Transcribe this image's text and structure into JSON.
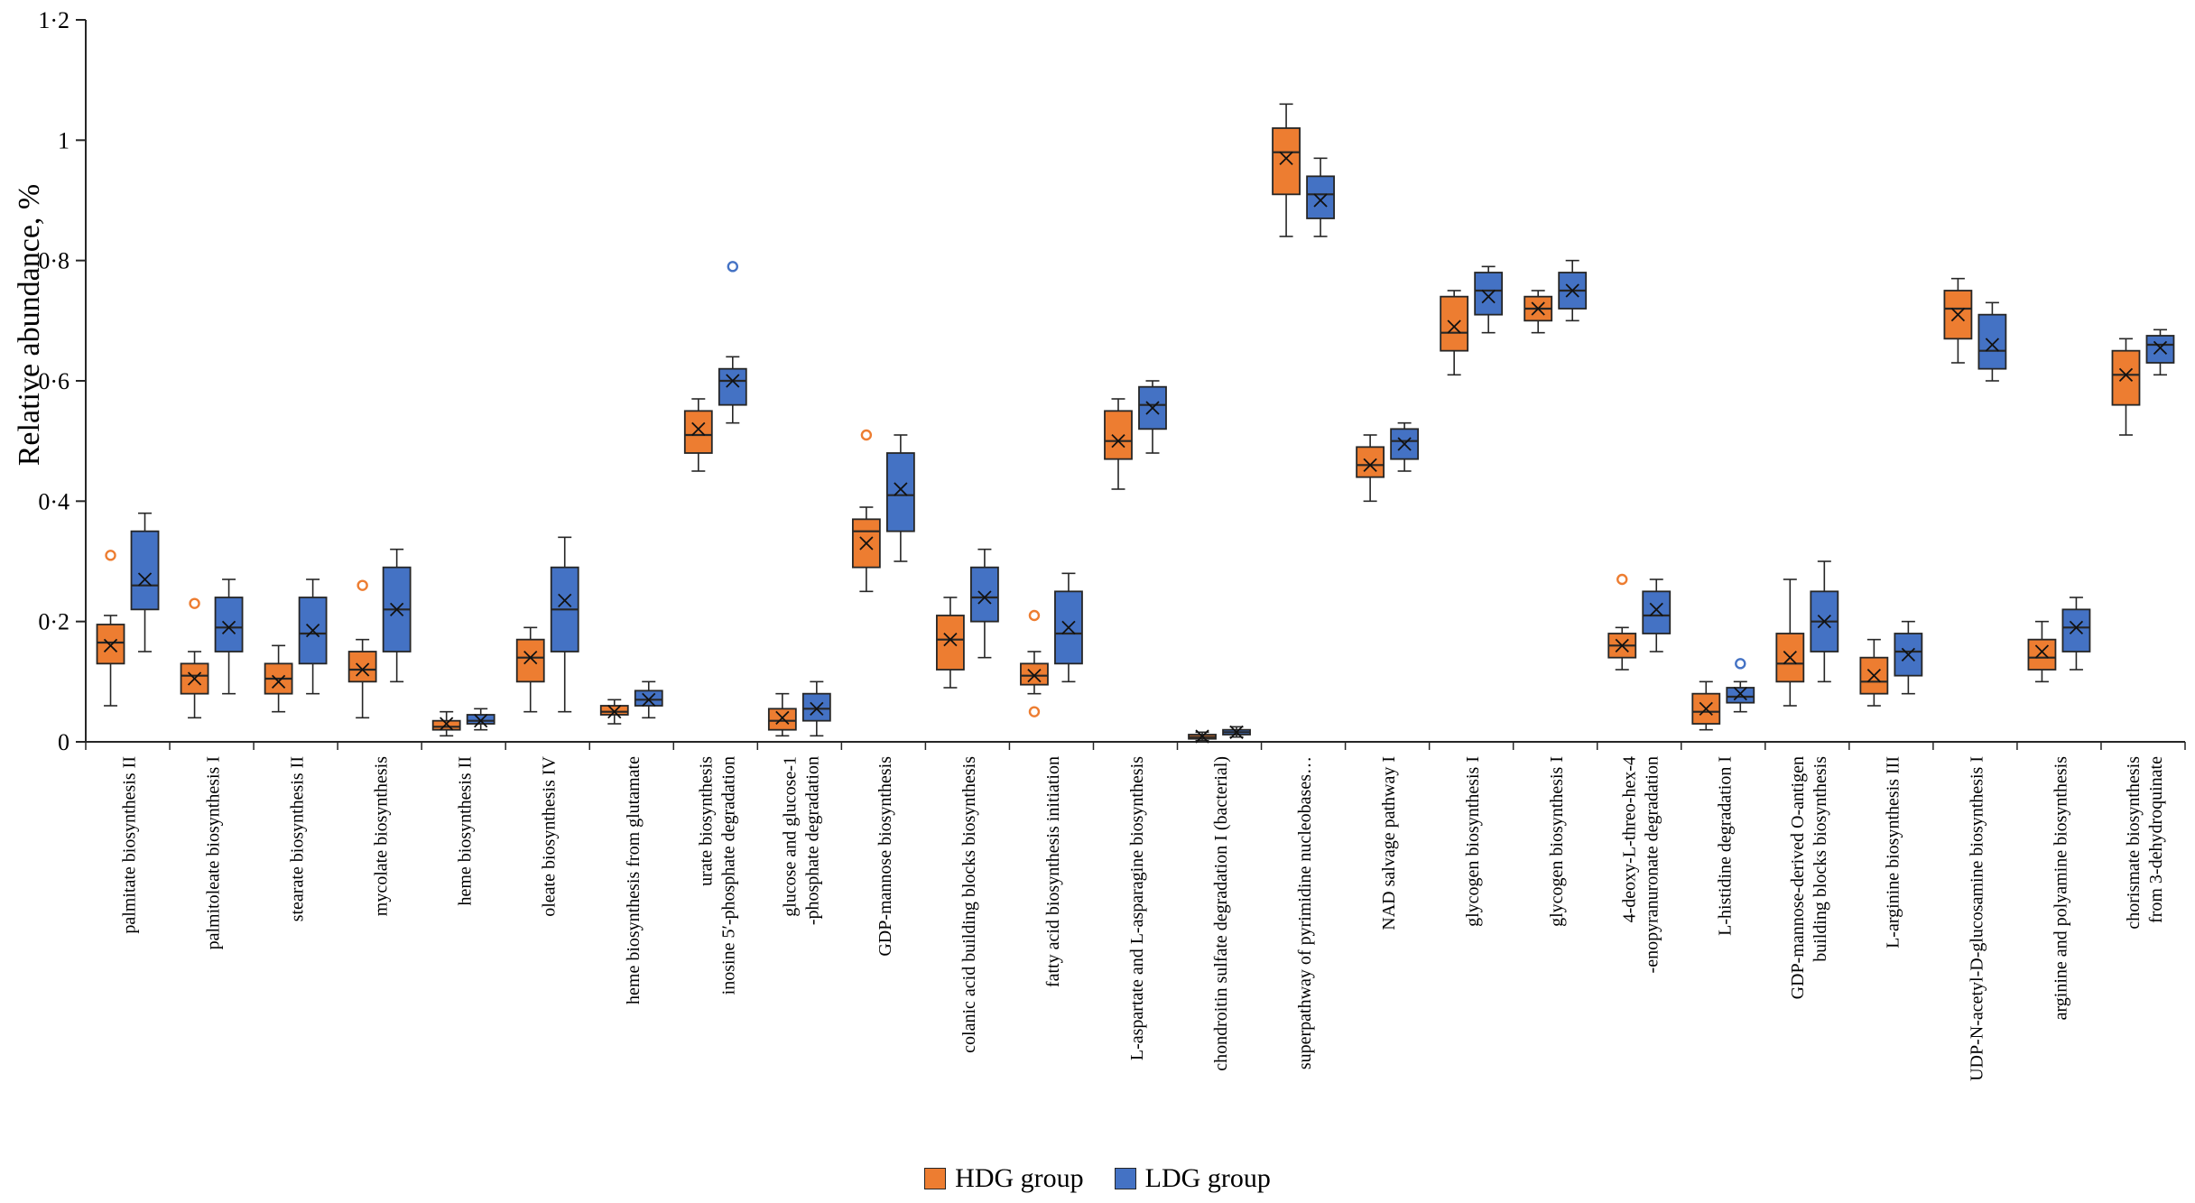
{
  "figure": {
    "background": "#ffffff"
  },
  "chart_data": {
    "type": "boxplot",
    "title": "",
    "ylabel": "Relative abundance, %",
    "xlabel": "",
    "ylim": [
      0,
      1.2
    ],
    "yticks": [
      0,
      0.2,
      0.4,
      0.6,
      0.8,
      1,
      1.2
    ],
    "ytick_labels": [
      "0",
      "0·2",
      "0·4",
      "0·6",
      "0·8",
      "1",
      "1·2"
    ],
    "grid": false,
    "legend_position": "bottom-center",
    "categories": [
      [
        "palmitate biosynthesis II"
      ],
      [
        "palmitoleate biosynthesis I"
      ],
      [
        "stearate biosynthesis II"
      ],
      [
        "mycolate biosynthesis"
      ],
      [
        "heme biosynthesis II"
      ],
      [
        "oleate biosynthesis IV"
      ],
      [
        "heme biosynthesis from glutamate"
      ],
      [
        "urate biosynthesis",
        "inosine 5′-phosphate degradation"
      ],
      [
        "glucose and glucose-1",
        "-phosphate degradation"
      ],
      [
        "GDP-mannose biosynthesis"
      ],
      [
        "colanic acid building blocks biosynthesis"
      ],
      [
        "fatty acid biosynthesis initiation"
      ],
      [
        "L-aspartate and L-asparagine biosynthesis"
      ],
      [
        "chondroitin sulfate degradation I (bacterial)"
      ],
      [
        "superpathway of pyrimidine nucleobases…"
      ],
      [
        "NAD salvage pathway I"
      ],
      [
        "glycogen biosynthesis I"
      ],
      [
        "glycogen biosynthesis I"
      ],
      [
        "4-deoxy-L-threo-hex-4",
        "-enopyranuronate degradation"
      ],
      [
        "L-histidine degradation I"
      ],
      [
        "GDP-mannose-derived O-antigen",
        "building blocks biosynthesis"
      ],
      [
        "L-arginine biosynthesis III"
      ],
      [
        "UDP-N-acetyl-D-glucosamine biosynthesis I"
      ],
      [
        "arginine and polyamine biosynthesis"
      ],
      [
        "chorismate biosynthesis",
        "from 3-dehydroquinate"
      ]
    ],
    "series": [
      {
        "name": "HDG group",
        "color": "#ED7D31",
        "edge": "#262626",
        "boxes": [
          {
            "low": 0.06,
            "q1": 0.13,
            "med": 0.165,
            "q3": 0.195,
            "high": 0.21,
            "mean": 0.16,
            "out": [
              0.31
            ]
          },
          {
            "low": 0.04,
            "q1": 0.08,
            "med": 0.11,
            "q3": 0.13,
            "high": 0.15,
            "mean": 0.105,
            "out": [
              0.23
            ]
          },
          {
            "low": 0.05,
            "q1": 0.08,
            "med": 0.105,
            "q3": 0.13,
            "high": 0.16,
            "mean": 0.1,
            "out": []
          },
          {
            "low": 0.04,
            "q1": 0.1,
            "med": 0.12,
            "q3": 0.15,
            "high": 0.17,
            "mean": 0.12,
            "out": [
              0.26
            ]
          },
          {
            "low": 0.01,
            "q1": 0.02,
            "med": 0.025,
            "q3": 0.035,
            "high": 0.05,
            "mean": 0.03,
            "out": []
          },
          {
            "low": 0.05,
            "q1": 0.1,
            "med": 0.14,
            "q3": 0.17,
            "high": 0.19,
            "mean": 0.14,
            "out": []
          },
          {
            "low": 0.03,
            "q1": 0.045,
            "med": 0.05,
            "q3": 0.06,
            "high": 0.07,
            "mean": 0.05,
            "out": []
          },
          {
            "low": 0.45,
            "q1": 0.48,
            "med": 0.51,
            "q3": 0.55,
            "high": 0.57,
            "mean": 0.52,
            "out": []
          },
          {
            "low": 0.01,
            "q1": 0.02,
            "med": 0.035,
            "q3": 0.055,
            "high": 0.08,
            "mean": 0.04,
            "out": []
          },
          {
            "low": 0.25,
            "q1": 0.29,
            "med": 0.35,
            "q3": 0.37,
            "high": 0.39,
            "mean": 0.33,
            "out": [
              0.51
            ]
          },
          {
            "low": 0.09,
            "q1": 0.12,
            "med": 0.17,
            "q3": 0.21,
            "high": 0.24,
            "mean": 0.17,
            "out": []
          },
          {
            "low": 0.08,
            "q1": 0.095,
            "med": 0.11,
            "q3": 0.13,
            "high": 0.15,
            "mean": 0.11,
            "out": [
              0.21,
              0.05
            ]
          },
          {
            "low": 0.42,
            "q1": 0.47,
            "med": 0.5,
            "q3": 0.55,
            "high": 0.57,
            "mean": 0.5,
            "out": []
          },
          {
            "low": 0.002,
            "q1": 0.005,
            "med": 0.008,
            "q3": 0.012,
            "high": 0.016,
            "mean": 0.009,
            "out": []
          },
          {
            "low": 0.84,
            "q1": 0.91,
            "med": 0.98,
            "q3": 1.02,
            "high": 1.06,
            "mean": 0.97,
            "out": []
          },
          {
            "low": 0.4,
            "q1": 0.44,
            "med": 0.46,
            "q3": 0.49,
            "high": 0.51,
            "mean": 0.46,
            "out": []
          },
          {
            "low": 0.61,
            "q1": 0.65,
            "med": 0.68,
            "q3": 0.74,
            "high": 0.75,
            "mean": 0.69,
            "out": []
          },
          {
            "low": 0.68,
            "q1": 0.7,
            "med": 0.72,
            "q3": 0.74,
            "high": 0.75,
            "mean": 0.72,
            "out": []
          },
          {
            "low": 0.12,
            "q1": 0.14,
            "med": 0.16,
            "q3": 0.18,
            "high": 0.19,
            "mean": 0.16,
            "out": [
              0.27
            ]
          },
          {
            "low": 0.02,
            "q1": 0.03,
            "med": 0.05,
            "q3": 0.08,
            "high": 0.1,
            "mean": 0.055,
            "out": []
          },
          {
            "low": 0.06,
            "q1": 0.1,
            "med": 0.13,
            "q3": 0.18,
            "high": 0.27,
            "mean": 0.14,
            "out": []
          },
          {
            "low": 0.06,
            "q1": 0.08,
            "med": 0.1,
            "q3": 0.14,
            "high": 0.17,
            "mean": 0.11,
            "out": []
          },
          {
            "low": 0.63,
            "q1": 0.67,
            "med": 0.72,
            "q3": 0.75,
            "high": 0.77,
            "mean": 0.71,
            "out": []
          },
          {
            "low": 0.1,
            "q1": 0.12,
            "med": 0.14,
            "q3": 0.17,
            "high": 0.2,
            "mean": 0.15,
            "out": []
          },
          {
            "low": 0.51,
            "q1": 0.56,
            "med": 0.61,
            "q3": 0.65,
            "high": 0.67,
            "mean": 0.61,
            "out": []
          }
        ]
      },
      {
        "name": "LDG group",
        "color": "#4472C4",
        "edge": "#262626",
        "boxes": [
          {
            "low": 0.15,
            "q1": 0.22,
            "med": 0.26,
            "q3": 0.35,
            "high": 0.38,
            "mean": 0.27,
            "out": []
          },
          {
            "low": 0.08,
            "q1": 0.15,
            "med": 0.19,
            "q3": 0.24,
            "high": 0.27,
            "mean": 0.19,
            "out": []
          },
          {
            "low": 0.08,
            "q1": 0.13,
            "med": 0.18,
            "q3": 0.24,
            "high": 0.27,
            "mean": 0.185,
            "out": []
          },
          {
            "low": 0.1,
            "q1": 0.15,
            "med": 0.22,
            "q3": 0.29,
            "high": 0.32,
            "mean": 0.22,
            "out": []
          },
          {
            "low": 0.02,
            "q1": 0.03,
            "med": 0.035,
            "q3": 0.045,
            "high": 0.055,
            "mean": 0.035,
            "out": []
          },
          {
            "low": 0.05,
            "q1": 0.15,
            "med": 0.22,
            "q3": 0.29,
            "high": 0.34,
            "mean": 0.235,
            "out": []
          },
          {
            "low": 0.04,
            "q1": 0.06,
            "med": 0.07,
            "q3": 0.085,
            "high": 0.1,
            "mean": 0.07,
            "out": []
          },
          {
            "low": 0.53,
            "q1": 0.56,
            "med": 0.6,
            "q3": 0.62,
            "high": 0.64,
            "mean": 0.6,
            "out": [
              0.79
            ]
          },
          {
            "low": 0.01,
            "q1": 0.035,
            "med": 0.055,
            "q3": 0.08,
            "high": 0.1,
            "mean": 0.055,
            "out": []
          },
          {
            "low": 0.3,
            "q1": 0.35,
            "med": 0.41,
            "q3": 0.48,
            "high": 0.51,
            "mean": 0.42,
            "out": []
          },
          {
            "low": 0.14,
            "q1": 0.2,
            "med": 0.24,
            "q3": 0.29,
            "high": 0.32,
            "mean": 0.24,
            "out": []
          },
          {
            "low": 0.1,
            "q1": 0.13,
            "med": 0.18,
            "q3": 0.25,
            "high": 0.28,
            "mean": 0.19,
            "out": []
          },
          {
            "low": 0.48,
            "q1": 0.52,
            "med": 0.56,
            "q3": 0.59,
            "high": 0.6,
            "mean": 0.555,
            "out": []
          },
          {
            "low": 0.008,
            "q1": 0.012,
            "med": 0.016,
            "q3": 0.02,
            "high": 0.025,
            "mean": 0.016,
            "out": []
          },
          {
            "low": 0.84,
            "q1": 0.87,
            "med": 0.91,
            "q3": 0.94,
            "high": 0.97,
            "mean": 0.9,
            "out": []
          },
          {
            "low": 0.45,
            "q1": 0.47,
            "med": 0.5,
            "q3": 0.52,
            "high": 0.53,
            "mean": 0.495,
            "out": []
          },
          {
            "low": 0.68,
            "q1": 0.71,
            "med": 0.75,
            "q3": 0.78,
            "high": 0.79,
            "mean": 0.74,
            "out": []
          },
          {
            "low": 0.7,
            "q1": 0.72,
            "med": 0.75,
            "q3": 0.78,
            "high": 0.8,
            "mean": 0.75,
            "out": []
          },
          {
            "low": 0.15,
            "q1": 0.18,
            "med": 0.21,
            "q3": 0.25,
            "high": 0.27,
            "mean": 0.22,
            "out": []
          },
          {
            "low": 0.05,
            "q1": 0.065,
            "med": 0.075,
            "q3": 0.09,
            "high": 0.1,
            "mean": 0.08,
            "out": [
              0.13
            ]
          },
          {
            "low": 0.1,
            "q1": 0.15,
            "med": 0.2,
            "q3": 0.25,
            "high": 0.3,
            "mean": 0.2,
            "out": []
          },
          {
            "low": 0.08,
            "q1": 0.11,
            "med": 0.15,
            "q3": 0.18,
            "high": 0.2,
            "mean": 0.145,
            "out": []
          },
          {
            "low": 0.6,
            "q1": 0.62,
            "med": 0.65,
            "q3": 0.71,
            "high": 0.73,
            "mean": 0.66,
            "out": []
          },
          {
            "low": 0.12,
            "q1": 0.15,
            "med": 0.19,
            "q3": 0.22,
            "high": 0.24,
            "mean": 0.19,
            "out": []
          },
          {
            "low": 0.61,
            "q1": 0.63,
            "med": 0.66,
            "q3": 0.675,
            "high": 0.685,
            "mean": 0.655,
            "out": []
          }
        ]
      }
    ]
  }
}
